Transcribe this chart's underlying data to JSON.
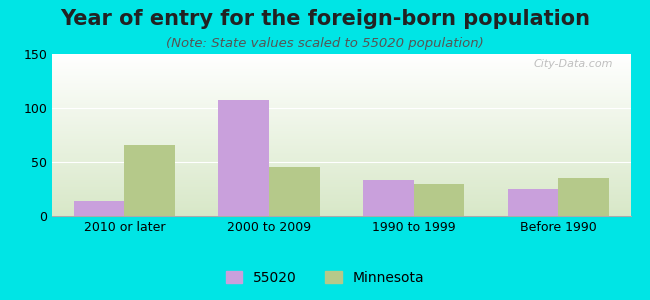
{
  "title": "Year of entry for the foreign-born population",
  "subtitle": "(Note: State values scaled to 55020 population)",
  "categories": [
    "2010 or later",
    "2000 to 2009",
    "1990 to 1999",
    "Before 1990"
  ],
  "series_55020": [
    14,
    107,
    33,
    25
  ],
  "series_minnesota": [
    66,
    45,
    30,
    35
  ],
  "color_55020": "#c9a0dc",
  "color_minnesota": "#b5c98a",
  "ylim": [
    0,
    150
  ],
  "yticks": [
    0,
    50,
    100,
    150
  ],
  "background_outer": "#00e5e5",
  "background_inner_top": "#ffffff",
  "background_inner_bottom": "#d8e8c8",
  "legend_55020": "55020",
  "legend_minnesota": "Minnesota",
  "bar_width": 0.35,
  "title_fontsize": 15,
  "subtitle_fontsize": 9.5,
  "tick_fontsize": 9,
  "legend_fontsize": 10
}
